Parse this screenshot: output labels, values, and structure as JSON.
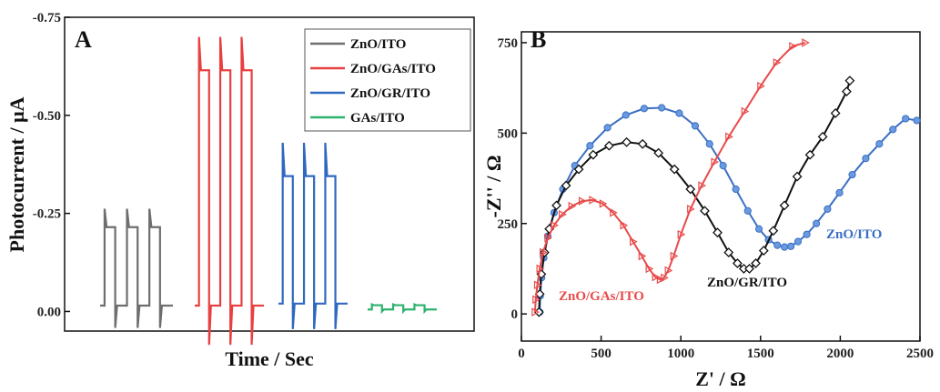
{
  "chart_data": [
    {
      "type": "line",
      "panel_label": "A",
      "xlabel": "Time / Sec",
      "ylabel": "Photocurrent / μA",
      "ylim": [
        0.05,
        -0.75
      ],
      "y_ticks": [
        0.0,
        -0.25,
        -0.5,
        -0.75
      ],
      "y_tick_labels": [
        "0.00",
        "-0.25",
        "-0.50",
        "-0.75"
      ],
      "x_ticks_shown": false,
      "legend": {
        "position": "top-right",
        "entries": [
          "ZnO/ITO",
          "ZnO/GAs/ITO",
          "ZnO/GR/ITO",
          "GAs/ITO"
        ]
      },
      "series": [
        {
          "name": "ZnO/ITO",
          "color": "#6e6e6e",
          "base": -0.015,
          "on_peak": -0.262,
          "on_plateau": -0.215,
          "off_spike": 0.042,
          "cycles": 3
        },
        {
          "name": "ZnO/GAs/ITO",
          "color": "#e84040",
          "base": -0.015,
          "on_peak": -0.7,
          "on_plateau": -0.615,
          "off_spike": 0.085,
          "cycles": 3
        },
        {
          "name": "ZnO/GR/ITO",
          "color": "#2f68c0",
          "base": -0.02,
          "on_peak": -0.43,
          "on_plateau": -0.345,
          "off_spike": 0.045,
          "cycles": 3
        },
        {
          "name": "GAs/ITO",
          "color": "#2eb26e",
          "base": -0.005,
          "on_peak": -0.018,
          "on_plateau": -0.016,
          "off_spike": 0.0,
          "cycles": 3
        }
      ]
    },
    {
      "type": "scatter",
      "panel_label": "B",
      "xlabel": "Z' / Ω",
      "ylabel": "-Z'' / Ω",
      "xlim": [
        0,
        2500
      ],
      "ylim": [
        -75,
        780
      ],
      "x_ticks": [
        0,
        500,
        1000,
        1500,
        2000,
        2500
      ],
      "y_ticks": [
        0,
        250,
        500,
        750
      ],
      "series": [
        {
          "name": "ZnO/ITO",
          "color": "#3a6fc4",
          "marker": "circle",
          "x": [
            115,
            118,
            126,
            140,
            165,
            205,
            260,
            335,
            430,
            540,
            655,
            770,
            880,
            990,
            1090,
            1180,
            1265,
            1345,
            1420,
            1490,
            1550,
            1605,
            1650,
            1690,
            1735,
            1790,
            1850,
            1920,
            1995,
            2075,
            2160,
            2245,
            2330,
            2410,
            2480
          ],
          "y": [
            5,
            50,
            100,
            155,
            215,
            280,
            345,
            410,
            465,
            515,
            550,
            568,
            570,
            555,
            520,
            470,
            410,
            345,
            285,
            235,
            205,
            190,
            185,
            187,
            200,
            220,
            250,
            290,
            335,
            385,
            430,
            470,
            510,
            540,
            535
          ]
        },
        {
          "name": "ZnO/GR/ITO",
          "color": "#111111",
          "marker": "diamond",
          "x": [
            110,
            115,
            125,
            145,
            175,
            220,
            280,
            360,
            450,
            550,
            660,
            760,
            860,
            960,
            1060,
            1150,
            1230,
            1300,
            1355,
            1395,
            1430,
            1470,
            1520,
            1580,
            1650,
            1730,
            1810,
            1890,
            1970,
            2040,
            2060
          ],
          "y": [
            5,
            55,
            110,
            170,
            235,
            300,
            355,
            400,
            440,
            465,
            475,
            470,
            445,
            400,
            345,
            285,
            225,
            170,
            140,
            125,
            125,
            140,
            175,
            230,
            300,
            380,
            440,
            490,
            555,
            615,
            645
          ]
        },
        {
          "name": "ZnO/GAs/ITO",
          "color": "#e84a4a",
          "marker": "triangle",
          "x": [
            85,
            90,
            100,
            115,
            135,
            165,
            205,
            255,
            315,
            380,
            445,
            510,
            575,
            640,
            700,
            755,
            800,
            840,
            870,
            895,
            920,
            955,
            1000,
            1060,
            1130,
            1210,
            1300,
            1400,
            1500,
            1600,
            1700,
            1780
          ],
          "y": [
            5,
            40,
            80,
            125,
            170,
            210,
            245,
            275,
            298,
            312,
            315,
            305,
            280,
            245,
            200,
            160,
            125,
            102,
            95,
            100,
            120,
            160,
            220,
            290,
            355,
            420,
            490,
            560,
            630,
            695,
            740,
            750
          ]
        }
      ],
      "annotations": [
        {
          "text": "ZnO/ITO",
          "color": "#3a6fc4"
        },
        {
          "text": "ZnO/GR/ITO",
          "color": "#111111"
        },
        {
          "text": "ZnO/GAs/ITO",
          "color": "#e84a4a"
        }
      ]
    }
  ]
}
